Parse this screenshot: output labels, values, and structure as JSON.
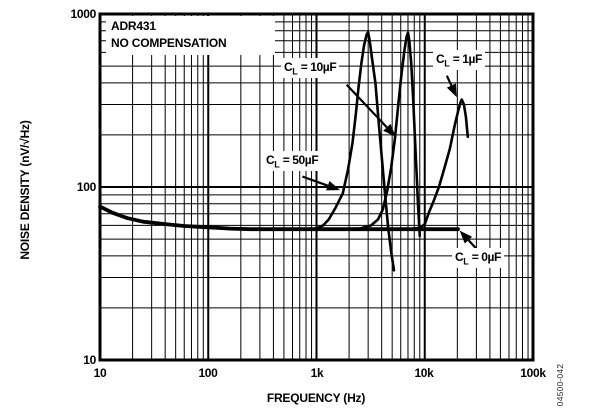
{
  "figure": {
    "title_line1": "ADR431",
    "title_line2": "NO COMPENSATION",
    "figure_code": "04500-042"
  },
  "chart_data": {
    "type": "line",
    "title": "ADR431 NO COMPENSATION",
    "xlabel": "FREQUENCY (Hz)",
    "ylabel": "NOISE DENSITY (nV/√Hz)",
    "x_scale": "log",
    "y_scale": "log",
    "xlim": [
      10,
      100000
    ],
    "ylim": [
      10,
      1000
    ],
    "grid": "full log grid, major and minor lines, black on white",
    "legend_position": "inline labels with arrows",
    "line_color": "#000000",
    "x_ticks": [
      {
        "value": 10,
        "label": "10"
      },
      {
        "value": 100,
        "label": "100"
      },
      {
        "value": 1000,
        "label": "1k"
      },
      {
        "value": 10000,
        "label": "10k"
      },
      {
        "value": 100000,
        "label": "100k"
      }
    ],
    "y_ticks": [
      {
        "value": 10,
        "label": "10"
      },
      {
        "value": 100,
        "label": "100"
      },
      {
        "value": 1000,
        "label": "1000"
      }
    ],
    "series": [
      {
        "name": "CL = 50µF",
        "peak": {
          "frequency_hz": 3000,
          "noise_nv": 785
        },
        "points": [
          [
            10,
            77
          ],
          [
            13,
            71
          ],
          [
            18,
            66
          ],
          [
            25,
            63
          ],
          [
            40,
            61
          ],
          [
            60,
            59.5
          ],
          [
            100,
            58.5
          ],
          [
            160,
            57.5
          ],
          [
            250,
            57
          ],
          [
            400,
            57
          ],
          [
            650,
            57
          ],
          [
            1000,
            57.5
          ],
          [
            1150,
            60
          ],
          [
            1300,
            65
          ],
          [
            1500,
            76
          ],
          [
            1750,
            92
          ],
          [
            1950,
            125
          ],
          [
            2150,
            180
          ],
          [
            2300,
            260
          ],
          [
            2450,
            380
          ],
          [
            2600,
            520
          ],
          [
            2750,
            660
          ],
          [
            2900,
            760
          ],
          [
            3000,
            785
          ],
          [
            3100,
            700
          ],
          [
            3250,
            560
          ],
          [
            3500,
            400
          ],
          [
            3750,
            240
          ],
          [
            4000,
            150
          ],
          [
            4300,
            90
          ],
          [
            4600,
            58
          ],
          [
            4900,
            42
          ],
          [
            5200,
            33
          ]
        ]
      },
      {
        "name": "CL = 10µF",
        "peak": {
          "frequency_hz": 7000,
          "noise_nv": 780
        },
        "points": [
          [
            10,
            77
          ],
          [
            13,
            71
          ],
          [
            18,
            66
          ],
          [
            25,
            63
          ],
          [
            40,
            61
          ],
          [
            60,
            59.5
          ],
          [
            100,
            58.5
          ],
          [
            160,
            57.5
          ],
          [
            250,
            57
          ],
          [
            400,
            57
          ],
          [
            650,
            57
          ],
          [
            1000,
            57
          ],
          [
            1500,
            57
          ],
          [
            2500,
            57.5
          ],
          [
            3200,
            60
          ],
          [
            3700,
            65
          ],
          [
            4100,
            74
          ],
          [
            4500,
            95
          ],
          [
            4900,
            130
          ],
          [
            5300,
            190
          ],
          [
            5700,
            300
          ],
          [
            6100,
            450
          ],
          [
            6500,
            620
          ],
          [
            6800,
            740
          ],
          [
            7000,
            780
          ],
          [
            7200,
            700
          ],
          [
            7500,
            520
          ],
          [
            7800,
            330
          ],
          [
            8100,
            200
          ],
          [
            8400,
            120
          ],
          [
            8700,
            75
          ],
          [
            9000,
            52
          ]
        ]
      },
      {
        "name": "CL = 1µF",
        "peak": {
          "frequency_hz": 22000,
          "noise_nv": 320
        },
        "points": [
          [
            10,
            77
          ],
          [
            13,
            71
          ],
          [
            18,
            66
          ],
          [
            25,
            63
          ],
          [
            40,
            61
          ],
          [
            60,
            59.5
          ],
          [
            100,
            58.5
          ],
          [
            160,
            57.5
          ],
          [
            250,
            57
          ],
          [
            400,
            57
          ],
          [
            650,
            57
          ],
          [
            1000,
            57
          ],
          [
            2000,
            57
          ],
          [
            4000,
            57
          ],
          [
            7000,
            57
          ],
          [
            9000,
            58
          ],
          [
            10000,
            61
          ],
          [
            11000,
            72
          ],
          [
            12000,
            82
          ],
          [
            13500,
            100
          ],
          [
            15000,
            125
          ],
          [
            17000,
            165
          ],
          [
            19000,
            230
          ],
          [
            20500,
            280
          ],
          [
            21500,
            310
          ],
          [
            22000,
            320
          ],
          [
            23000,
            300
          ],
          [
            24000,
            255
          ],
          [
            25000,
            195
          ]
        ]
      },
      {
        "name": "CL = 0µF",
        "peak": null,
        "points": [
          [
            10,
            77
          ],
          [
            13,
            71
          ],
          [
            18,
            66
          ],
          [
            25,
            63
          ],
          [
            40,
            61
          ],
          [
            60,
            59.5
          ],
          [
            100,
            58.5
          ],
          [
            160,
            57.5
          ],
          [
            250,
            57
          ],
          [
            400,
            57
          ],
          [
            650,
            57
          ],
          [
            1000,
            57
          ],
          [
            2000,
            57
          ],
          [
            5000,
            57
          ],
          [
            10000,
            57
          ],
          [
            15000,
            57
          ],
          [
            20300,
            57
          ]
        ]
      }
    ],
    "annotations": [
      {
        "id": "cl-10uf",
        "c": "C",
        "sub": "L",
        "rest": " = 10µF",
        "arrow": {
          "from": [
            1900,
            390
          ],
          "to": [
            5400,
            195
          ]
        }
      },
      {
        "id": "cl-1uf",
        "c": "C",
        "sub": "L",
        "rest": " = 1µF",
        "arrow": {
          "from": [
            16000,
            440
          ],
          "to": [
            19800,
            330
          ]
        }
      },
      {
        "id": "cl-50uf",
        "c": "C",
        "sub": "L",
        "rest": " = 50µF",
        "arrow": {
          "from": [
            740,
            115
          ],
          "to": [
            1650,
            96
          ]
        }
      },
      {
        "id": "cl-0uf",
        "c": "C",
        "sub": "L",
        "rest": " = 0µF",
        "arrow": {
          "from": [
            31000,
            43
          ],
          "to": [
            21000,
            56
          ]
        }
      }
    ]
  }
}
